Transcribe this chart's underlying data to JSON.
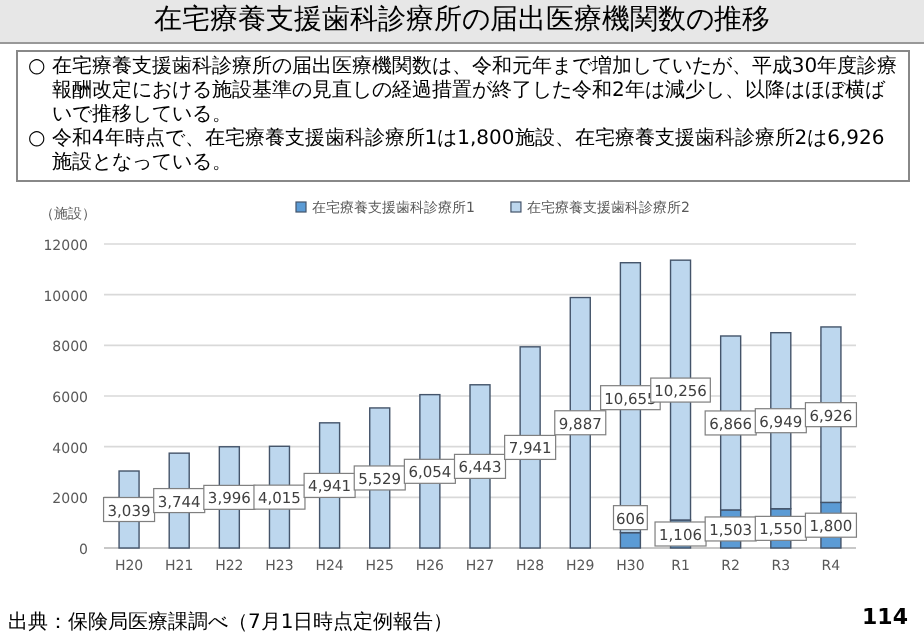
{
  "chart_data": {
    "type": "bar",
    "title": "在宅療養支援歯科診療所の届出医療機関数の推移",
    "annotations": [
      "○ 在宅療養支援歯科診療所の届出医療機関数は、令和元年まで増加していたが、平成30年度診療報酬改定における施設基準の見直しの経過措置が終了した令和2年は減少し、以降はほぼ横ばいで推移している。",
      "○ 令和4年時点で、在宅療養支援歯科診療所1は1,800施設、在宅療養支援歯科診療所2は6,926施設となっている。",
      "出典：保険局医療課調べ（7月1日時点定例報告）",
      "114"
    ],
    "ylabel": "（施設）",
    "categories": [
      "H20",
      "H21",
      "H22",
      "H23",
      "H24",
      "H25",
      "H26",
      "H27",
      "H28",
      "H29",
      "H30",
      "R1",
      "R2",
      "R3",
      "R4"
    ],
    "stacked": true,
    "series": [
      {
        "name": "在宅療養支援歯科診療所1",
        "color": "#5b9bd5",
        "values": [
          null,
          null,
          null,
          null,
          null,
          null,
          null,
          null,
          null,
          null,
          606,
          1106,
          1503,
          1550,
          1800
        ],
        "value_labels": [
          null,
          null,
          null,
          null,
          null,
          null,
          null,
          null,
          null,
          null,
          "606",
          "1,106",
          "1,503",
          "1,550",
          "1,800"
        ]
      },
      {
        "name": "在宅療養支援歯科診療所2",
        "color": "#bdd7ee",
        "values": [
          3039,
          3744,
          3996,
          4015,
          4941,
          5529,
          6054,
          6443,
          7941,
          9887,
          10655,
          10256,
          6866,
          6949,
          6926
        ],
        "value_labels": [
          "3,039",
          "3,744",
          "3,996",
          "4,015",
          "4,941",
          "5,529",
          "6,054",
          "6,443",
          "7,941",
          "9,887",
          "10,655",
          "10,256",
          "6,866",
          "6,949",
          "6,926"
        ]
      }
    ],
    "ylim": [
      0,
      12000
    ],
    "yticks": [
      0,
      2000,
      4000,
      6000,
      8000,
      10000,
      12000
    ],
    "grid": "y",
    "legend": "top"
  }
}
